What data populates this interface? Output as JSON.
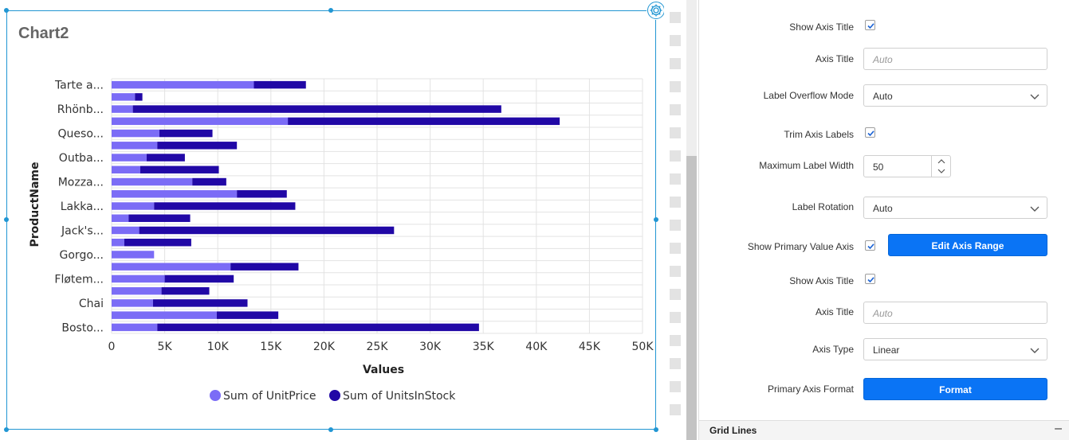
{
  "chart": {
    "title": "Chart2",
    "settings_icon": "gear-icon"
  },
  "chart_data": {
    "type": "bar",
    "orientation": "horizontal",
    "stacked": true,
    "categories": [
      "Boston Crab Meat",
      "",
      "Chai",
      "",
      "Fløtemysost",
      "",
      "Gorgonzola Telino",
      "",
      "Jack's New England Clam Chowder",
      "",
      "Lakkalikööri",
      "",
      "Mozzarella di Giovanni",
      "",
      "Outback Lager",
      "",
      "Queso Cabrales",
      "",
      "Rhönbräu Klosterbier",
      "",
      "Tarte au sucre"
    ],
    "tick_labels": [
      "Bosto...",
      "",
      "Chai",
      "",
      "Fløtem...",
      "",
      "Gorgo...",
      "",
      "Jack's...",
      "",
      "Lakka...",
      "",
      "Mozza...",
      "",
      "Outba...",
      "",
      "Queso...",
      "",
      "Rhönb...",
      "",
      "Tarte a..."
    ],
    "series": [
      {
        "name": "Sum of UnitPrice",
        "color": "#7b6cf6",
        "values": [
          4300,
          9900,
          3900,
          4700,
          5000,
          11200,
          4000,
          1200,
          2600,
          1600,
          4000,
          11800,
          7600,
          2700,
          3300,
          4300,
          4500,
          16600,
          2000,
          2200,
          13400
        ]
      },
      {
        "name": "Sum of UnitsInStock",
        "color": "#2108a6",
        "values": [
          30300,
          5800,
          8900,
          4500,
          6500,
          6400,
          0,
          6300,
          24000,
          5800,
          13300,
          4700,
          3200,
          7400,
          3600,
          7500,
          5000,
          25600,
          34700,
          700,
          4900
        ]
      }
    ],
    "xlabel": "Values",
    "ylabel": "ProductName",
    "xlim": [
      0,
      50000
    ],
    "xticks": [
      "0",
      "5K",
      "10K",
      "15K",
      "20K",
      "25K",
      "30K",
      "35K",
      "40K",
      "45K",
      "50K"
    ],
    "grid": true,
    "legend": "bottom"
  },
  "panel": {
    "rows": [
      {
        "label": "Show Axis Title",
        "type": "checkbox",
        "checked": true
      },
      {
        "label": "Axis Title",
        "type": "input",
        "placeholder": "Auto"
      },
      {
        "label": "Label Overflow Mode",
        "type": "dropdown",
        "value": "Auto"
      },
      {
        "label": "Trim Axis Labels",
        "type": "checkbox",
        "checked": true
      },
      {
        "label": "Maximum Label Width",
        "type": "spinner",
        "value": "50"
      },
      {
        "label": "Label Rotation",
        "type": "dropdown",
        "value": "Auto"
      },
      {
        "label": "Show Primary Value Axis",
        "type": "checkbox+button",
        "checked": true,
        "button": "Edit Axis Range"
      },
      {
        "label": "Show Axis Title",
        "type": "checkbox",
        "checked": true
      },
      {
        "label": "Axis Title",
        "type": "input",
        "placeholder": "Auto"
      },
      {
        "label": "Axis Type",
        "type": "dropdown",
        "value": "Linear"
      },
      {
        "label": "Primary Axis Format",
        "type": "button",
        "button": "Format"
      }
    ],
    "section": {
      "label": "Grid Lines",
      "collapse_icon": "minus-icon",
      "collapse_glyph": "–"
    }
  }
}
